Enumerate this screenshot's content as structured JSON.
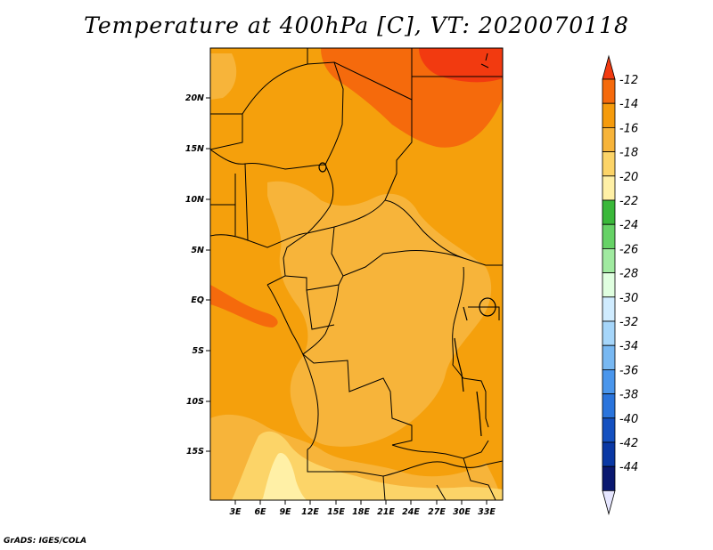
{
  "title": "Temperature at 400hPa [C], VT: 2020070118",
  "credit": "GrADS: IGES/COLA",
  "lat_labels": [
    "20N",
    "15N",
    "10N",
    "5N",
    "EQ",
    "5S",
    "10S",
    "15S"
  ],
  "lon_labels": [
    "3E",
    "6E",
    "9E",
    "12E",
    "15E",
    "18E",
    "21E",
    "24E",
    "27E",
    "30E",
    "33E"
  ],
  "colorbar": {
    "labels": [
      "-12",
      "-14",
      "-16",
      "-18",
      "-20",
      "-22",
      "-24",
      "-26",
      "-28",
      "-30",
      "-32",
      "-34",
      "-36",
      "-38",
      "-40",
      "-42",
      "-44"
    ],
    "colors": [
      "#f23a10",
      "#f56a0c",
      "#f59b0c",
      "#f7b43a",
      "#fcd468",
      "#fff0a6",
      "#3ab83a",
      "#66d266",
      "#a0eaa0",
      "#e0ffe0",
      "#d0ecff",
      "#a6d6fa",
      "#78b8f2",
      "#4a96ec",
      "#2a74dc",
      "#1450c0",
      "#0a38a4",
      "#0a1870",
      "#e6e6ff"
    ]
  }
}
